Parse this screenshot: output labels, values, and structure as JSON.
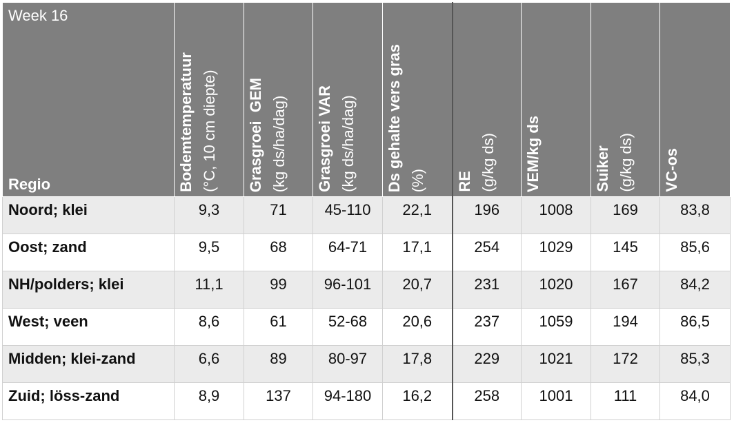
{
  "header": {
    "week": "Week 16",
    "region": "Regio",
    "columns": [
      {
        "title": "Bodemtemperatuur",
        "unit": "(°C, 10 cm diepte)"
      },
      {
        "title": "Grasgroei  GEM",
        "unit": "(kg ds/ha/dag)"
      },
      {
        "title": "Grasgroei VAR",
        "unit": "(kg ds/ha/dag)"
      },
      {
        "title": "Ds gehalte vers gras",
        "unit": "(%)"
      },
      {
        "title": "RE",
        "unit": "(g/kg ds)"
      },
      {
        "title": "VEM/kg ds"
      },
      {
        "title": "Suiker",
        "unit": "(g/kg ds)"
      },
      {
        "title": "VC-os"
      }
    ]
  },
  "table": {
    "rows": [
      [
        "Noord; klei",
        "9,3",
        "71",
        "45-110",
        "22,1",
        "196",
        "1008",
        "169",
        "83,8"
      ],
      [
        "Oost; zand",
        "9,5",
        "68",
        "64-71",
        "17,1",
        "254",
        "1029",
        "145",
        "85,6"
      ],
      [
        "NH/polders; klei",
        "11,1",
        "99",
        "96-101",
        "20,7",
        "231",
        "1020",
        "167",
        "84,2"
      ],
      [
        "West; veen",
        "8,6",
        "61",
        "52-68",
        "20,6",
        "237",
        "1059",
        "194",
        "86,5"
      ],
      [
        "Midden; klei-zand",
        "6,6",
        "89",
        "80-97",
        "17,8",
        "229",
        "1021",
        "172",
        "85,3"
      ],
      [
        "Zuid; löss-zand",
        "8,9",
        "137",
        "94-180",
        "16,2",
        "258",
        "1001",
        "111",
        "84,0"
      ]
    ]
  }
}
